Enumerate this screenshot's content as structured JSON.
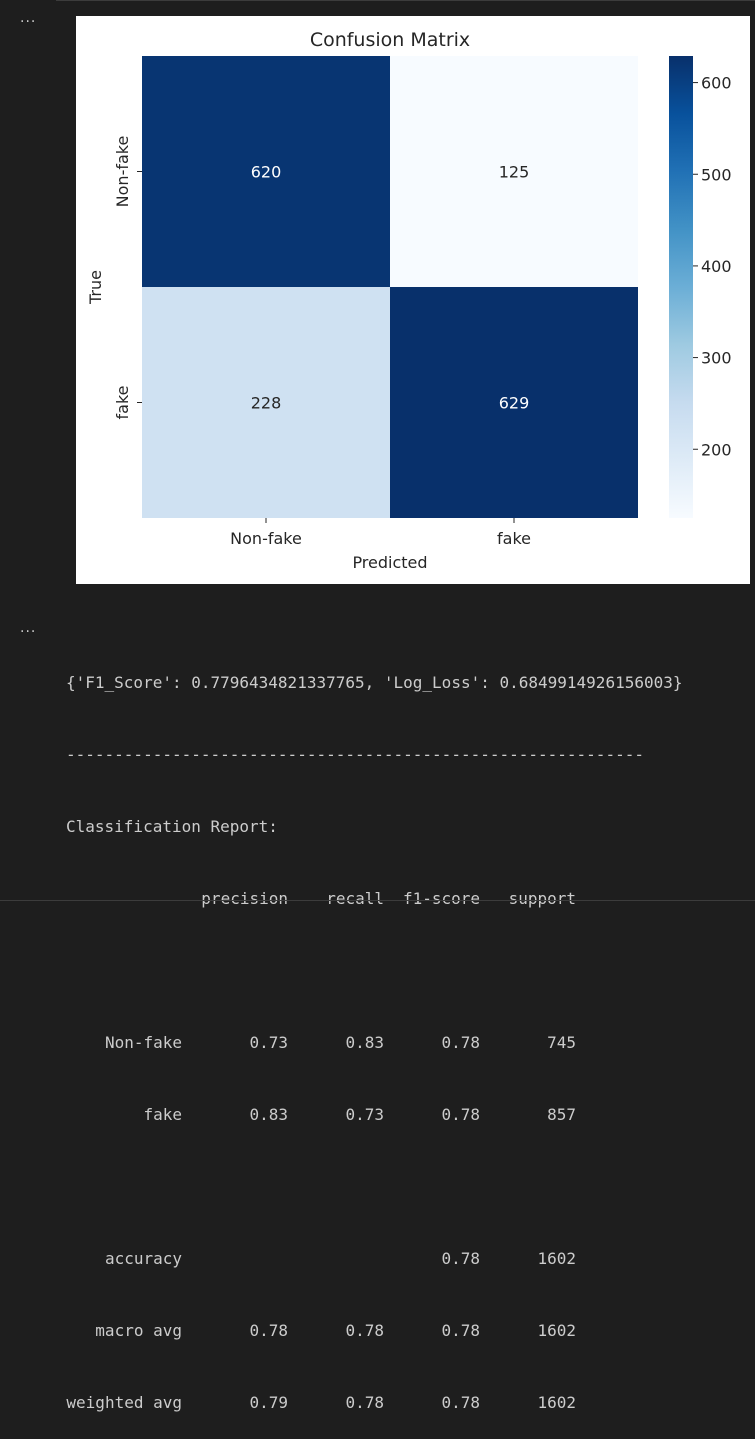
{
  "cells": {
    "cell1_prompt": "···",
    "cell2_prompt": "···"
  },
  "chart_data": {
    "type": "heatmap",
    "title": "Confusion Matrix",
    "xlabel": "Predicted",
    "ylabel": "True",
    "x_categories": [
      "Non-fake",
      "fake"
    ],
    "y_categories": [
      "Non-fake",
      "fake"
    ],
    "values": [
      [
        620,
        125
      ],
      [
        228,
        629
      ]
    ],
    "colormap": "Blues",
    "colorbar": {
      "ticks": [
        200,
        300,
        400,
        500,
        600
      ],
      "vmin": 125,
      "vmax": 629
    },
    "colors": {
      "dark": "#08306b",
      "light": "#f7fbff",
      "text_on_dark": "#ffffff",
      "text_on_light": "#262626"
    }
  },
  "output": {
    "metrics_line": "{'F1_Score': 0.7796434821337765, 'Log_Loss': 0.6849914926156003}",
    "separator": "------------------------------------------------------------",
    "report_title": "Classification Report:",
    "headers": [
      "precision",
      "recall",
      "f1-score",
      "support"
    ],
    "rows": [
      {
        "label": "Non-fake",
        "precision": "0.73",
        "recall": "0.83",
        "f1": "0.78",
        "support": "745"
      },
      {
        "label": "fake",
        "precision": "0.83",
        "recall": "0.73",
        "f1": "0.78",
        "support": "857"
      }
    ],
    "summary_rows": [
      {
        "label": "accuracy",
        "precision": "",
        "recall": "",
        "f1": "0.78",
        "support": "1602"
      },
      {
        "label": "macro avg",
        "precision": "0.78",
        "recall": "0.78",
        "f1": "0.78",
        "support": "1602"
      },
      {
        "label": "weighted avg",
        "precision": "0.79",
        "recall": "0.78",
        "f1": "0.78",
        "support": "1602"
      }
    ]
  }
}
